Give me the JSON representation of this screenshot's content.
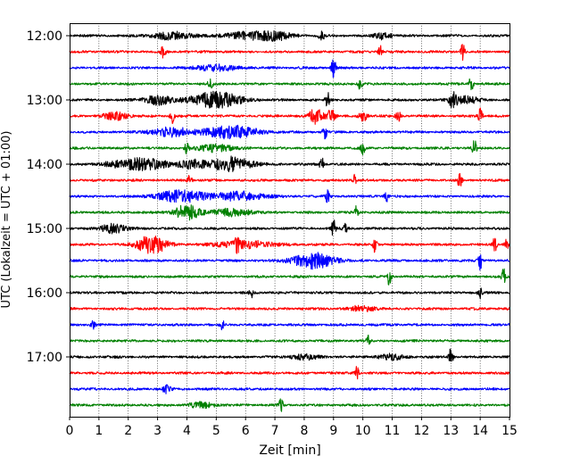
{
  "chart_data": {
    "type": "line",
    "title": "",
    "xlabel": "Zeit  [min]",
    "ylabel": "UTC (Lokalzeit = UTC + 01:00)",
    "xlim": [
      0,
      15
    ],
    "x_ticks": [
      0,
      1,
      2,
      3,
      4,
      5,
      6,
      7,
      8,
      9,
      10,
      11,
      12,
      13,
      14,
      15
    ],
    "x_grid": "dotted vertical lines at every minute",
    "y_tick_labels": [
      "12:00",
      "13:00",
      "14:00",
      "15:00",
      "16:00",
      "17:00"
    ],
    "row_interval_minutes": 15,
    "color_cycle": [
      "#000000",
      "#ff0000",
      "#0000ff",
      "#008000"
    ],
    "series": [
      {
        "start": "12:00",
        "color": "#000000",
        "events": [
          [
            8.6,
            1.0,
            0.06
          ],
          [
            3.5,
            0.5,
            0.5
          ],
          [
            6.0,
            0.5,
            0.5
          ],
          [
            7.0,
            0.6,
            0.4
          ],
          [
            10.7,
            0.5,
            0.2
          ]
        ]
      },
      {
        "start": "12:15",
        "color": "#ff0000",
        "events": [
          [
            3.2,
            1.2,
            0.05
          ],
          [
            10.6,
            0.8,
            0.05
          ],
          [
            13.4,
            1.2,
            0.05
          ]
        ]
      },
      {
        "start": "12:30",
        "color": "#0000ff",
        "events": [
          [
            9.0,
            1.3,
            0.06
          ],
          [
            5.0,
            0.4,
            0.5
          ]
        ]
      },
      {
        "start": "12:45",
        "color": "#008000",
        "events": [
          [
            4.8,
            0.9,
            0.05
          ],
          [
            9.9,
            0.8,
            0.05
          ],
          [
            13.7,
            1.3,
            0.05
          ]
        ]
      },
      {
        "start": "13:00",
        "color": "#000000",
        "events": [
          [
            5.0,
            1.1,
            0.6
          ],
          [
            3.0,
            0.6,
            0.4
          ],
          [
            8.8,
            1.1,
            0.05
          ],
          [
            13.1,
            1.3,
            0.1
          ],
          [
            13.5,
            0.5,
            0.3
          ]
        ]
      },
      {
        "start": "13:15",
        "color": "#ff0000",
        "events": [
          [
            3.5,
            1.0,
            0.05
          ],
          [
            8.4,
            1.1,
            0.15
          ],
          [
            8.9,
            1.0,
            0.1
          ],
          [
            10.0,
            0.8,
            0.1
          ],
          [
            11.2,
            0.9,
            0.05
          ],
          [
            14.0,
            1.2,
            0.05
          ],
          [
            1.6,
            0.5,
            0.3
          ]
        ]
      },
      {
        "start": "13:30",
        "color": "#0000ff",
        "events": [
          [
            5.5,
            0.9,
            0.6
          ],
          [
            8.7,
            1.0,
            0.05
          ],
          [
            3.5,
            0.6,
            0.5
          ]
        ]
      },
      {
        "start": "13:45",
        "color": "#008000",
        "events": [
          [
            4.0,
            0.9,
            0.05
          ],
          [
            10.0,
            1.0,
            0.05
          ],
          [
            13.8,
            1.2,
            0.05
          ],
          [
            5.0,
            0.5,
            0.4
          ]
        ]
      },
      {
        "start": "14:00",
        "color": "#000000",
        "events": [
          [
            2.4,
            0.8,
            0.7
          ],
          [
            5.5,
            1.0,
            0.5
          ],
          [
            8.6,
            1.0,
            0.05
          ],
          [
            4.2,
            0.6,
            0.3
          ]
        ]
      },
      {
        "start": "14:15",
        "color": "#ff0000",
        "events": [
          [
            4.1,
            0.9,
            0.05
          ],
          [
            9.7,
            0.9,
            0.05
          ],
          [
            13.3,
            1.2,
            0.05
          ]
        ]
      },
      {
        "start": "14:30",
        "color": "#0000ff",
        "events": [
          [
            3.8,
            0.8,
            0.6
          ],
          [
            5.8,
            0.6,
            0.6
          ],
          [
            8.8,
            0.9,
            0.05
          ],
          [
            10.8,
            0.8,
            0.05
          ]
        ]
      },
      {
        "start": "14:45",
        "color": "#008000",
        "events": [
          [
            4.0,
            1.0,
            0.3
          ],
          [
            9.8,
            1.0,
            0.05
          ],
          [
            5.5,
            0.5,
            0.5
          ]
        ]
      },
      {
        "start": "15:00",
        "color": "#000000",
        "events": [
          [
            9.0,
            1.2,
            0.05
          ],
          [
            1.5,
            0.6,
            0.3
          ],
          [
            9.4,
            0.6,
            0.05
          ]
        ]
      },
      {
        "start": "15:15",
        "color": "#ff0000",
        "events": [
          [
            2.8,
            1.3,
            0.35
          ],
          [
            5.7,
            1.0,
            0.05
          ],
          [
            10.4,
            1.0,
            0.05
          ],
          [
            14.5,
            1.0,
            0.05
          ],
          [
            14.9,
            0.9,
            0.05
          ],
          [
            6.0,
            0.5,
            0.7
          ]
        ]
      },
      {
        "start": "15:30",
        "color": "#0000ff",
        "events": [
          [
            8.3,
            1.1,
            0.5
          ],
          [
            14.0,
            1.4,
            0.05
          ]
        ]
      },
      {
        "start": "15:45",
        "color": "#008000",
        "events": [
          [
            10.9,
            1.2,
            0.05
          ],
          [
            14.8,
            1.3,
            0.05
          ]
        ]
      },
      {
        "start": "16:00",
        "color": "#000000",
        "events": [
          [
            6.2,
            0.6,
            0.05
          ],
          [
            14.0,
            0.7,
            0.05
          ]
        ]
      },
      {
        "start": "16:15",
        "color": "#ff0000",
        "events": [
          [
            10.0,
            0.4,
            0.3
          ]
        ]
      },
      {
        "start": "16:30",
        "color": "#0000ff",
        "events": [
          [
            0.8,
            0.7,
            0.05
          ],
          [
            5.2,
            0.7,
            0.05
          ]
        ]
      },
      {
        "start": "16:45",
        "color": "#008000",
        "events": [
          [
            10.2,
            0.7,
            0.05
          ]
        ]
      },
      {
        "start": "17:00",
        "color": "#000000",
        "events": [
          [
            13.0,
            1.2,
            0.05
          ],
          [
            8.0,
            0.4,
            0.3
          ],
          [
            11.0,
            0.4,
            0.3
          ]
        ]
      },
      {
        "start": "17:15",
        "color": "#ff0000",
        "events": [
          [
            9.8,
            1.0,
            0.05
          ]
        ]
      },
      {
        "start": "17:30",
        "color": "#0000ff",
        "events": [
          [
            3.3,
            0.5,
            0.1
          ]
        ]
      },
      {
        "start": "17:45",
        "color": "#008000",
        "events": [
          [
            7.2,
            1.0,
            0.05
          ],
          [
            4.5,
            0.4,
            0.3
          ]
        ]
      }
    ]
  }
}
